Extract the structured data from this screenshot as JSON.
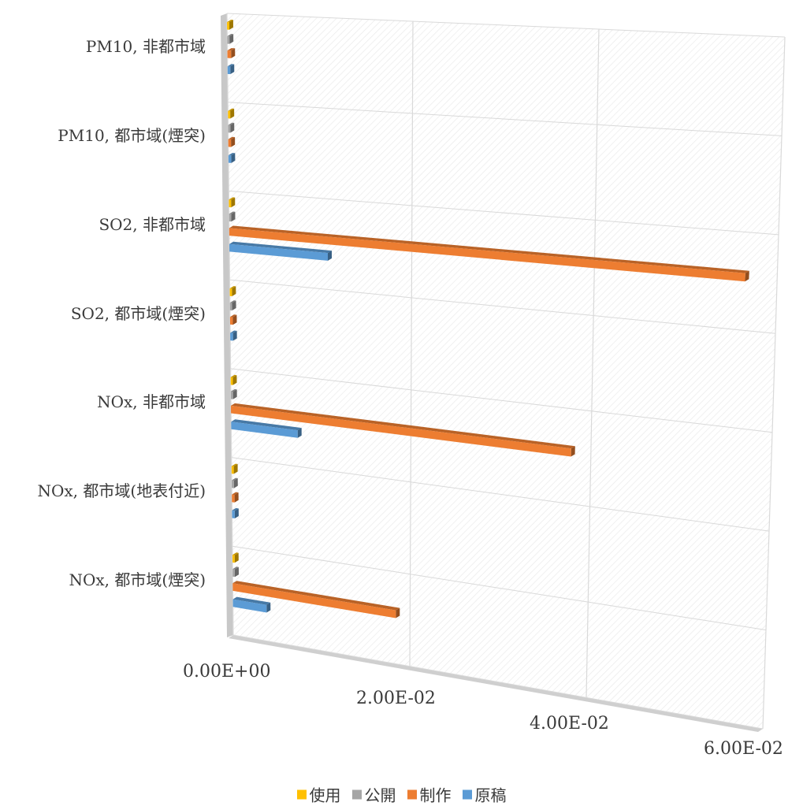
{
  "chart_data": {
    "type": "bar",
    "orientation": "horizontal",
    "style": "3d-perspective",
    "categories": [
      "PM10, 非都市域",
      "PM10, 都市域(煙突)",
      "SO2, 非都市域",
      "SO2, 都市域(煙突)",
      "NOx, 非都市域",
      "NOx, 都市域(地表付近)",
      "NOx, 都市域(煙突)"
    ],
    "series": [
      {
        "name": "使用",
        "color": "#FFC000",
        "values": [
          0.0002,
          0.0002,
          0.0002,
          0.0002,
          0.0002,
          0.0002,
          0.0002
        ]
      },
      {
        "name": "公開",
        "color": "#A5A5A5",
        "values": [
          0.0001,
          0.0001,
          0.0001,
          0.0001,
          0.0001,
          0.0001,
          0.0001
        ]
      },
      {
        "name": "制作",
        "color": "#ED7D31",
        "values": [
          0.0004,
          0.0003,
          0.0565,
          0.0003,
          0.0378,
          0.0003,
          0.0184
        ]
      },
      {
        "name": "原稿",
        "color": "#5B9BD5",
        "values": [
          0.0003,
          0.0003,
          0.0108,
          0.0003,
          0.0074,
          0.0003,
          0.0038
        ]
      }
    ],
    "x_ticks": [
      "0.00E+00",
      "2.00E-02",
      "4.00E-02",
      "6.00E-02"
    ],
    "xlim": [
      0,
      0.06
    ],
    "grid": true,
    "legend_position": "bottom"
  }
}
